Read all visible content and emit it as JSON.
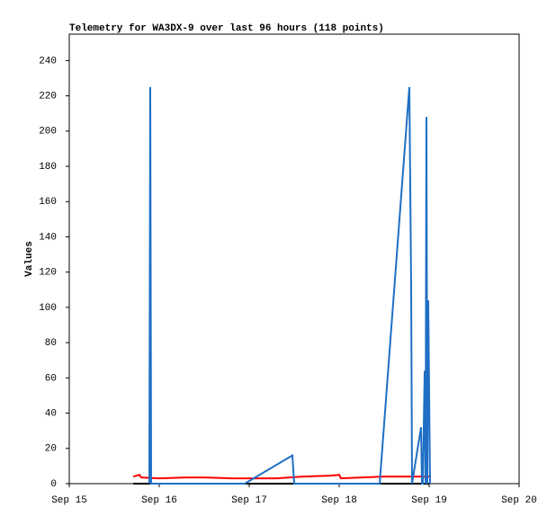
{
  "chart_data": {
    "type": "line",
    "title": "Telemetry for WA3DX-9 over last 96 hours (118 points)",
    "y_label": "Values",
    "xlim": [
      15,
      20
    ],
    "xticks": [
      {
        "value": 15,
        "label": "Sep 15"
      },
      {
        "value": 16,
        "label": "Sep 16"
      },
      {
        "value": 17,
        "label": "Sep 17"
      },
      {
        "value": 18,
        "label": "Sep 18"
      },
      {
        "value": 19,
        "label": "Sep 19"
      },
      {
        "value": 20,
        "label": "Sep 20"
      }
    ],
    "ylim": [
      0,
      255
    ],
    "yticks": [
      0,
      20,
      40,
      60,
      80,
      100,
      120,
      140,
      160,
      180,
      200,
      220,
      240
    ],
    "series": [
      {
        "color": "#000000",
        "x": [
          15.71,
          19.0
        ],
        "values": [
          0,
          0
        ]
      },
      {
        "color": "#ff0000",
        "x": [
          15.71,
          15.78,
          15.8,
          16.0,
          16.3,
          16.5,
          16.8,
          17.0,
          17.3,
          17.6,
          17.9,
          18.0,
          18.02,
          18.5,
          19.0
        ],
        "values": [
          4,
          5,
          3.5,
          3,
          3.5,
          3.5,
          3,
          3,
          3,
          4,
          4.5,
          5,
          3,
          4,
          4
        ]
      },
      {
        "color": "#1f6fc5",
        "x": [
          15.89,
          15.9,
          15.91,
          16.95,
          17.48,
          17.5,
          18.45,
          18.78,
          18.8,
          18.81,
          18.91,
          18.92,
          18.93,
          18.95,
          18.96,
          18.97,
          18.98,
          18.99,
          19.01
        ],
        "values": [
          0,
          225,
          0,
          0,
          16,
          0,
          0,
          225,
          112,
          0,
          32,
          0,
          0,
          64,
          0,
          208,
          0,
          104,
          0
        ]
      }
    ]
  }
}
